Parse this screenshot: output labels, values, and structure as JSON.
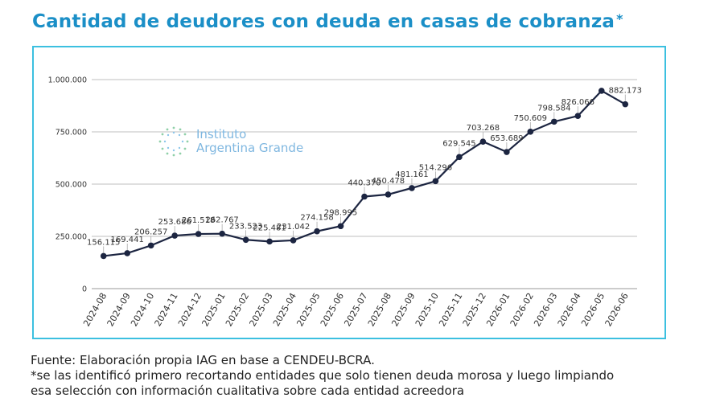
{
  "title": "Cantidad de deudores con deuda en casas de cobranza",
  "title_mark": "*",
  "logo": {
    "line1": "Instituto",
    "line2": "Argentina Grande"
  },
  "footer": {
    "source": "Fuente: Elaboración propia IAG en base a CENDEU-BCRA.",
    "note_line1": "*se las identificó primero recortando entidades que solo tienen deuda morosa y luego limpiando",
    "note_line2": "esa selección con información cualitativa sobre cada entidad acreedora"
  },
  "colors": {
    "title": "#1b8fc7",
    "frame": "#3cc0e0",
    "line": "#1c2541",
    "grid": "#bfbfbf"
  },
  "chart_data": {
    "type": "line",
    "categories": [
      "2024-08",
      "2024-09",
      "2024-10",
      "2024-11",
      "2024-12",
      "2025-01",
      "2025-02",
      "2025-03",
      "2025-04",
      "2025-05",
      "2025-06",
      "2025-07",
      "2025-08",
      "2025-09",
      "2025-10",
      "2025-11",
      "2025-12",
      "2026-01",
      "2026-02",
      "2026-03",
      "2026-04",
      "2026-05",
      "2026-06"
    ],
    "values": [
      156115,
      169441,
      206257,
      253686,
      261518,
      262767,
      233523,
      225481,
      231042,
      274158,
      298995,
      440370,
      450478,
      481161,
      514296,
      629545,
      703268,
      653689,
      750609,
      798584,
      826066,
      946500,
      882173
    ],
    "labels": [
      "156.115",
      "169.441",
      "206.257",
      "253.686",
      "261.518",
      "262.767",
      "233.523",
      "225.481",
      "231.042",
      "274.158",
      "298.995",
      "440.370",
      "450.478",
      "481.161",
      "514.296",
      "629.545",
      "703.268",
      "653.689",
      "750.609",
      "798.584",
      "826.066",
      "",
      "882.173"
    ],
    "yticks": [
      "0",
      "250.000",
      "500.000",
      "750.000",
      "1.000.000"
    ],
    "ytick_values": [
      0,
      250000,
      500000,
      750000,
      1000000
    ],
    "ylim": [
      0,
      1000000
    ],
    "grid": true
  }
}
